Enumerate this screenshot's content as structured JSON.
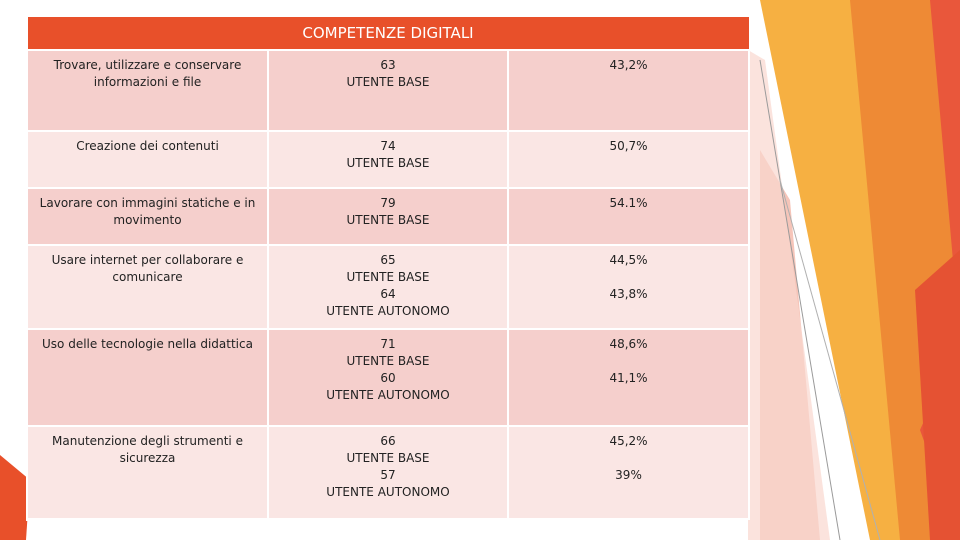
{
  "table": {
    "title": "COMPETENZE DIGITALI",
    "rows": [
      {
        "competence": "Trovare, utilizzare e conservare informazioni e file",
        "count1": "63",
        "level1": "UTENTE BASE",
        "count2": "",
        "level2": "",
        "pct1": "43,2%",
        "pct2": ""
      },
      {
        "competence": "Creazione dei contenuti",
        "count1": "74",
        "level1": "UTENTE BASE",
        "count2": "",
        "level2": "",
        "pct1": "50,7%",
        "pct2": ""
      },
      {
        "competence": "Lavorare con immagini statiche e in movimento",
        "count1": "79",
        "level1": "UTENTE BASE",
        "count2": "",
        "level2": "",
        "pct1": "54.1%",
        "pct2": ""
      },
      {
        "competence": "Usare internet per collaborare e comunicare",
        "count1": "65",
        "level1": "UTENTE BASE",
        "count2": "64",
        "level2": "UTENTE AUTONOMO",
        "pct1": "44,5%",
        "pct2": "43,8%"
      },
      {
        "competence": "Uso delle tecnologie nella didattica",
        "count1": "71",
        "level1": "UTENTE BASE",
        "count2": "60",
        "level2": "UTENTE AUTONOMO",
        "pct1": "48,6%",
        "pct2": "41,1%"
      },
      {
        "competence": "Manutenzione degli strumenti e sicurezza",
        "count1": "66",
        "level1": "UTENTE BASE",
        "count2": "57",
        "level2": "UTENTE AUTONOMO",
        "pct1": "45,2%",
        "pct2": "39%"
      }
    ]
  },
  "colors": {
    "header": "#e8502a",
    "row_odd": "#f5cfcc",
    "row_even": "#fae6e4",
    "accent_orange": "#f39a3b",
    "accent_red": "#e8502a"
  }
}
